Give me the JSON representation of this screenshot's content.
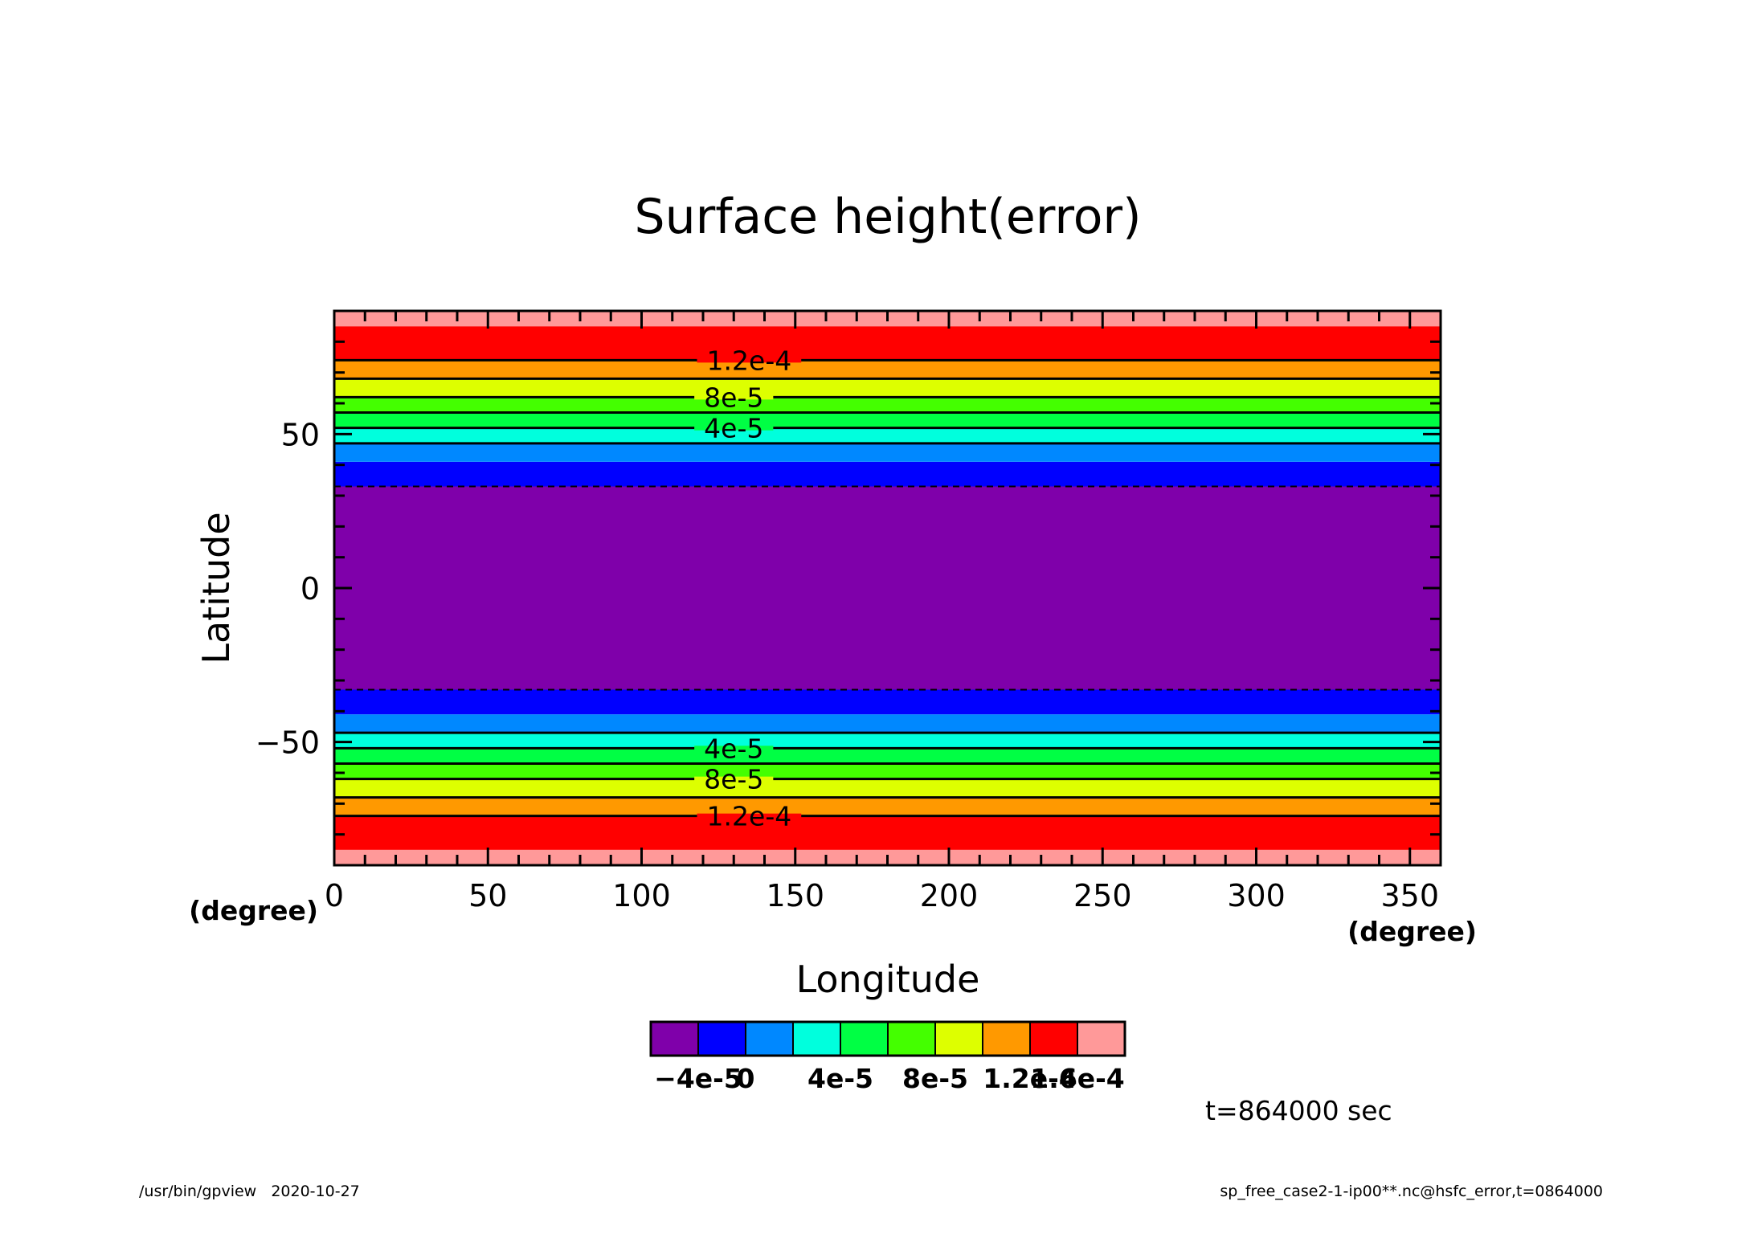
{
  "chart_data": {
    "type": "contour-fill",
    "title": "Surface height(error)",
    "xlabel": "Longitude",
    "ylabel": "Latitude",
    "x_unit": "(degree)",
    "y_unit": "(degree)",
    "xlim": [
      0,
      360
    ],
    "ylim": [
      -90,
      90
    ],
    "x_ticks": [
      0,
      50,
      100,
      150,
      200,
      250,
      300,
      350
    ],
    "y_ticks": [
      -50,
      0,
      50
    ],
    "bands": [
      {
        "lat_min": -90,
        "lat_max": -85,
        "color": "#ff9999"
      },
      {
        "lat_min": -85,
        "lat_max": -74,
        "color": "#ff0000"
      },
      {
        "lat_min": -74,
        "lat_max": -68,
        "color": "#ff9900"
      },
      {
        "lat_min": -68,
        "lat_max": -62,
        "color": "#ddff00"
      },
      {
        "lat_min": -62,
        "lat_max": -57,
        "color": "#44ff00"
      },
      {
        "lat_min": -57,
        "lat_max": -52,
        "color": "#00ff44"
      },
      {
        "lat_min": -52,
        "lat_max": -47,
        "color": "#00ffdd"
      },
      {
        "lat_min": -47,
        "lat_max": -41,
        "color": "#0088ff"
      },
      {
        "lat_min": -41,
        "lat_max": -33,
        "color": "#0000ff"
      },
      {
        "lat_min": -33,
        "lat_max": 33,
        "color": "#7f00aa"
      },
      {
        "lat_min": 33,
        "lat_max": 41,
        "color": "#0000ff"
      },
      {
        "lat_min": 41,
        "lat_max": 47,
        "color": "#0088ff"
      },
      {
        "lat_min": 47,
        "lat_max": 52,
        "color": "#00ffdd"
      },
      {
        "lat_min": 52,
        "lat_max": 57,
        "color": "#00ff44"
      },
      {
        "lat_min": 57,
        "lat_max": 62,
        "color": "#44ff00"
      },
      {
        "lat_min": 62,
        "lat_max": 68,
        "color": "#ddff00"
      },
      {
        "lat_min": 68,
        "lat_max": 74,
        "color": "#ff9900"
      },
      {
        "lat_min": 74,
        "lat_max": 85,
        "color": "#ff0000"
      },
      {
        "lat_min": 85,
        "lat_max": 90,
        "color": "#ff9999"
      }
    ],
    "contour_lines": [
      {
        "lat": -74,
        "style": "solid"
      },
      {
        "lat": -68,
        "style": "solid"
      },
      {
        "lat": -62,
        "style": "solid"
      },
      {
        "lat": -57,
        "style": "solid"
      },
      {
        "lat": -52,
        "style": "solid"
      },
      {
        "lat": -47,
        "style": "solid"
      },
      {
        "lat": -33,
        "style": "dashed"
      },
      {
        "lat": 33,
        "style": "dashed"
      },
      {
        "lat": 47,
        "style": "solid"
      },
      {
        "lat": 52,
        "style": "solid"
      },
      {
        "lat": 57,
        "style": "solid"
      },
      {
        "lat": 62,
        "style": "solid"
      },
      {
        "lat": 68,
        "style": "solid"
      },
      {
        "lat": 74,
        "style": "solid"
      }
    ],
    "contour_labels": [
      {
        "text": "1.2e-4",
        "lat": 74,
        "lon": 135
      },
      {
        "text": "8e-5",
        "lat": 62,
        "lon": 130
      },
      {
        "text": "4e-5",
        "lat": 52,
        "lon": 130
      },
      {
        "text": "4e-5",
        "lat": -52,
        "lon": 130
      },
      {
        "text": "8e-5",
        "lat": -62,
        "lon": 130
      },
      {
        "text": "1.2e-4",
        "lat": -74,
        "lon": 135
      }
    ],
    "colorbar": {
      "colors": [
        "#7f00aa",
        "#0000ff",
        "#0088ff",
        "#00ffdd",
        "#00ff44",
        "#44ff00",
        "#ddff00",
        "#ff9900",
        "#ff0000",
        "#ff9999"
      ],
      "labels": [
        {
          "text": "-4e-5",
          "boundary": 1
        },
        {
          "text": "0",
          "boundary": 2
        },
        {
          "text": "4e-5",
          "boundary": 4
        },
        {
          "text": "8e-5",
          "boundary": 6
        },
        {
          "text": "1.2e-4",
          "boundary": 8
        },
        {
          "text": "1.6e-4",
          "boundary": 9
        }
      ]
    },
    "time_label": "t=864000 sec"
  },
  "footer": {
    "left": "/usr/bin/gpview   2020-10-27",
    "right": "sp_free_case2-1-ip00**.nc@hsfc_error,t=0864000"
  }
}
